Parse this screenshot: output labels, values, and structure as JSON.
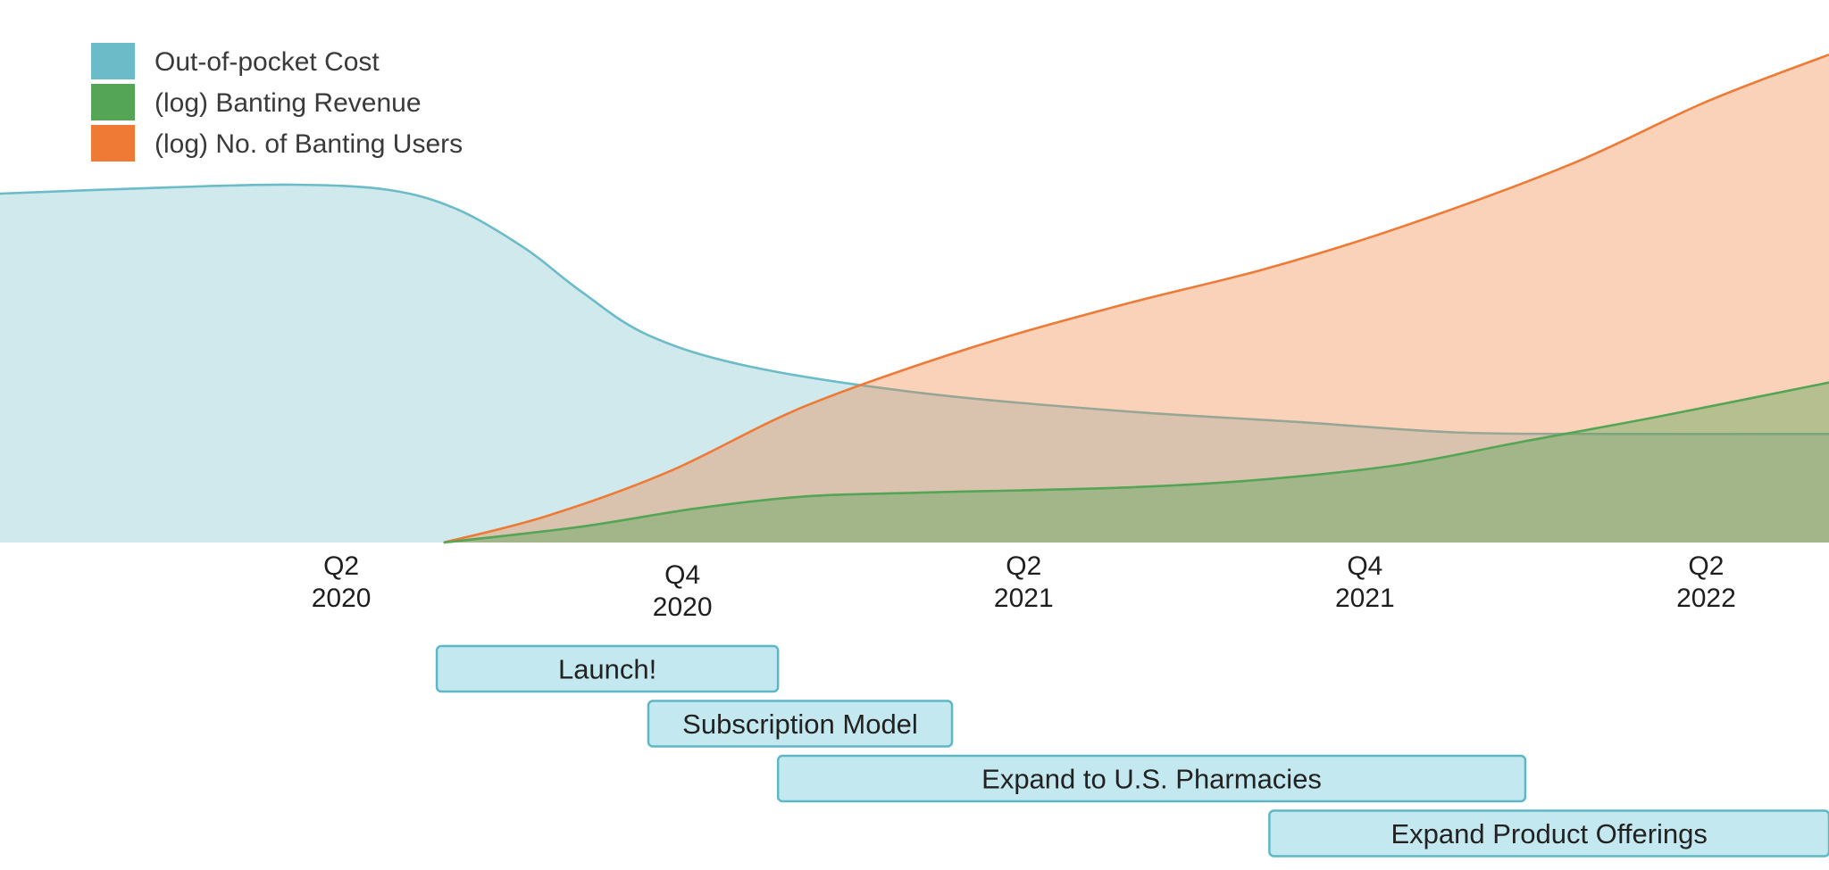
{
  "chart_data": {
    "type": "area",
    "title": "",
    "xlabel": "",
    "ylabel": "",
    "x_ticks": [
      {
        "quarter": "Q2",
        "year": "2020",
        "t": 2020.25
      },
      {
        "quarter": "Q4",
        "year": "2020",
        "t": 2020.75
      },
      {
        "quarter": "Q2",
        "year": "2021",
        "t": 2021.25
      },
      {
        "quarter": "Q4",
        "year": "2021",
        "t": 2021.75
      },
      {
        "quarter": "Q2",
        "year": "2022",
        "t": 2022.25
      }
    ],
    "xlim": [
      2019.75,
      2022.43
    ],
    "ylim": [
      0,
      1
    ],
    "colors": {
      "cost": "#6bbcc8",
      "revenue": "#55a556",
      "users": "#ef7a35",
      "milestone_fill": "#c3e8ef",
      "milestone_stroke": "#5fb7c6"
    },
    "series": [
      {
        "key": "users",
        "name": "(log) No. of Banting Users",
        "color": "#ef7a35",
        "x": [
          2020.4,
          2020.55,
          2020.73,
          2020.93,
          2021.17,
          2021.4,
          2021.6,
          2021.8,
          2022.05,
          2022.25,
          2022.43
        ],
        "values": [
          0.0,
          0.05,
          0.135,
          0.26,
          0.37,
          0.455,
          0.52,
          0.6,
          0.72,
          0.84,
          0.93
        ]
      },
      {
        "key": "revenue",
        "name": "(log) Banting Revenue",
        "color": "#55a556",
        "x": [
          2020.4,
          2020.6,
          2020.77,
          2020.93,
          2021.1,
          2021.4,
          2021.6,
          2021.8,
          2021.98,
          2022.18,
          2022.43
        ],
        "values": [
          0.0,
          0.03,
          0.065,
          0.088,
          0.095,
          0.105,
          0.12,
          0.148,
          0.192,
          0.24,
          0.305
        ]
      },
      {
        "key": "cost",
        "name": "Out-of-pocket Cost",
        "color": "#6bbcc8",
        "x": [
          2019.75,
          2020.0,
          2020.18,
          2020.32,
          2020.42,
          2020.52,
          2020.6,
          2020.7,
          2020.85,
          2021.1,
          2021.4,
          2021.65,
          2021.88,
          2022.1,
          2022.43
        ],
        "values": [
          0.665,
          0.677,
          0.682,
          0.672,
          0.635,
          0.56,
          0.48,
          0.395,
          0.335,
          0.285,
          0.25,
          0.23,
          0.21,
          0.207,
          0.207
        ]
      }
    ],
    "legend": [
      {
        "key": "cost",
        "label": "Out-of-pocket Cost",
        "color": "#6bbcc8"
      },
      {
        "key": "revenue",
        "label": "(log) Banting Revenue",
        "color": "#55a556"
      },
      {
        "key": "users",
        "label": "(log) No. of Banting Users",
        "color": "#ef7a35"
      }
    ],
    "legend_position": "top-left",
    "milestones": [
      {
        "label": "Launch!",
        "start": 2020.39,
        "end": 2020.89
      },
      {
        "label": "Subscription Model",
        "start": 2020.7,
        "end": 2021.145
      },
      {
        "label": "Expand to U.S. Pharmacies",
        "start": 2020.89,
        "end": 2021.985
      },
      {
        "label": "Expand Product Offerings",
        "start": 2021.61,
        "end": 2022.43
      }
    ]
  }
}
